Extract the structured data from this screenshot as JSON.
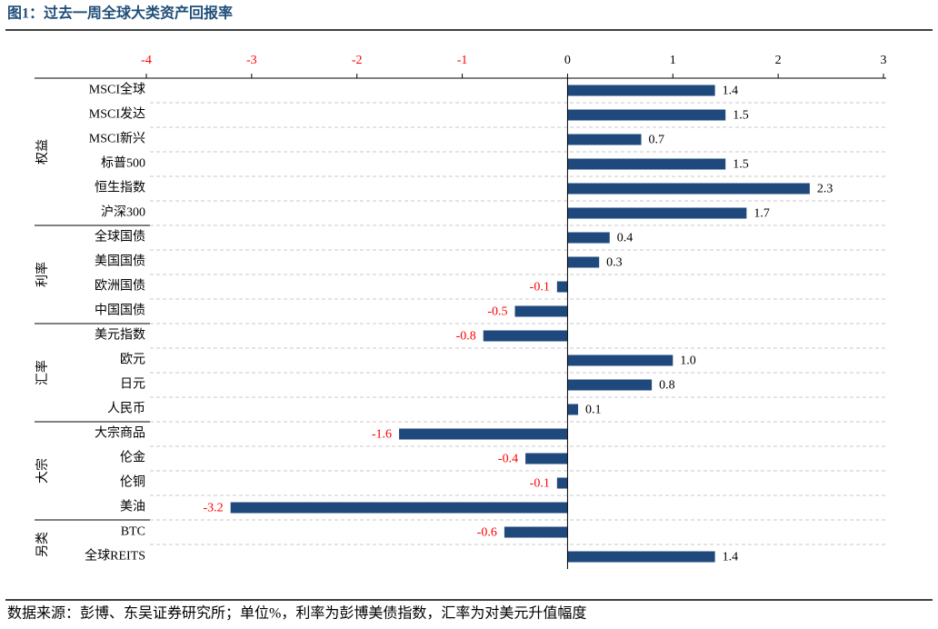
{
  "chart_data": {
    "type": "bar",
    "title": "图1：过去一周全球大类资产回报率",
    "source": "数据来源：彭博、东吴证券研究所；单位%，利率为彭博美债指数，汇率为对美元升值幅度",
    "groups": [
      {
        "name": "权益",
        "categories": [
          "MSCI全球",
          "MSCI发达",
          "MSCI新兴",
          "标普500",
          "恒生指数",
          "沪深300"
        ],
        "values": [
          1.4,
          1.5,
          0.7,
          1.5,
          2.3,
          1.7
        ],
        "value_labels": [
          "1.4",
          "1.5",
          "0.7",
          "1.5",
          "2.3",
          "1.7"
        ]
      },
      {
        "name": "利率",
        "categories": [
          "全球国债",
          "美国国债",
          "欧洲国债",
          "中国国债"
        ],
        "values": [
          0.4,
          0.3,
          -0.1,
          -0.5
        ],
        "value_labels": [
          "0.4",
          "0.3",
          "-0.1",
          "-0.5"
        ]
      },
      {
        "name": "汇率",
        "categories": [
          "美元指数",
          "欧元",
          "日元",
          "人民币"
        ],
        "values": [
          -0.8,
          1.0,
          0.8,
          0.1
        ],
        "value_labels": [
          "-0.8",
          "1.0",
          "0.8",
          "0.1"
        ]
      },
      {
        "name": "大宗",
        "categories": [
          "大宗商品",
          "伦金",
          "伦铜",
          "美油"
        ],
        "values": [
          -1.6,
          -0.4,
          -0.1,
          -3.2
        ],
        "value_labels": [
          "-1.6",
          "-0.4",
          "-0.1",
          "-3.2"
        ]
      },
      {
        "name": "另类",
        "categories": [
          "BTC",
          "全球REITS"
        ],
        "values": [
          -0.6,
          1.4
        ],
        "value_labels": [
          "-0.6",
          "1.4"
        ]
      }
    ],
    "color": "#1f497d",
    "negative_label_color": "#ff0000",
    "xlim": [
      -4,
      3
    ],
    "xticks": [
      -4,
      -3,
      -2,
      -1,
      0,
      1,
      2,
      3
    ],
    "grid": true
  }
}
